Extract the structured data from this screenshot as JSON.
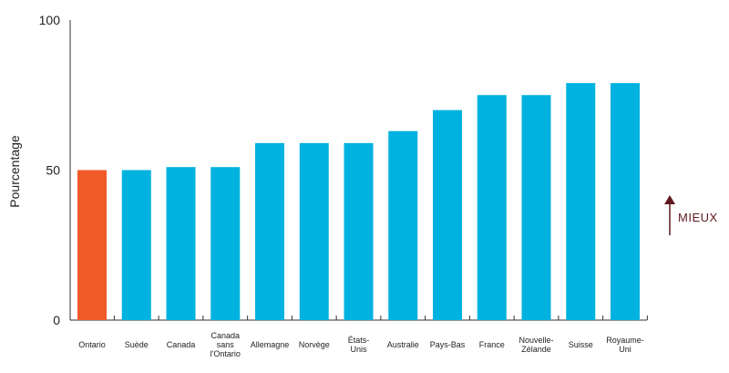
{
  "chart_data": {
    "type": "bar",
    "ylabel": "Pourcentage",
    "ylim": [
      0,
      100
    ],
    "yticks": [
      "0",
      "50",
      "100"
    ],
    "categories": [
      [
        "Ontario"
      ],
      [
        "Suède"
      ],
      [
        "Canada"
      ],
      [
        "Canada",
        "sans",
        "l'Ontario"
      ],
      [
        "Allemagne"
      ],
      [
        "Norvège"
      ],
      [
        "États-",
        "Unis"
      ],
      [
        "Australie"
      ],
      [
        "Pays-Bas"
      ],
      [
        "France"
      ],
      [
        "Nouvelle-",
        "Zélande"
      ],
      [
        "Suisse"
      ],
      [
        "Royaume-",
        "Uni"
      ]
    ],
    "values": [
      50,
      50,
      51,
      51,
      59,
      59,
      59,
      63,
      70,
      75,
      75,
      79,
      79
    ],
    "highlight_index": 0,
    "colors": {
      "bar": "#00b2e0",
      "highlight": "#f05a28",
      "axis": "#333333",
      "better": "#5c1a1f"
    },
    "better_label": "MIEUX"
  }
}
